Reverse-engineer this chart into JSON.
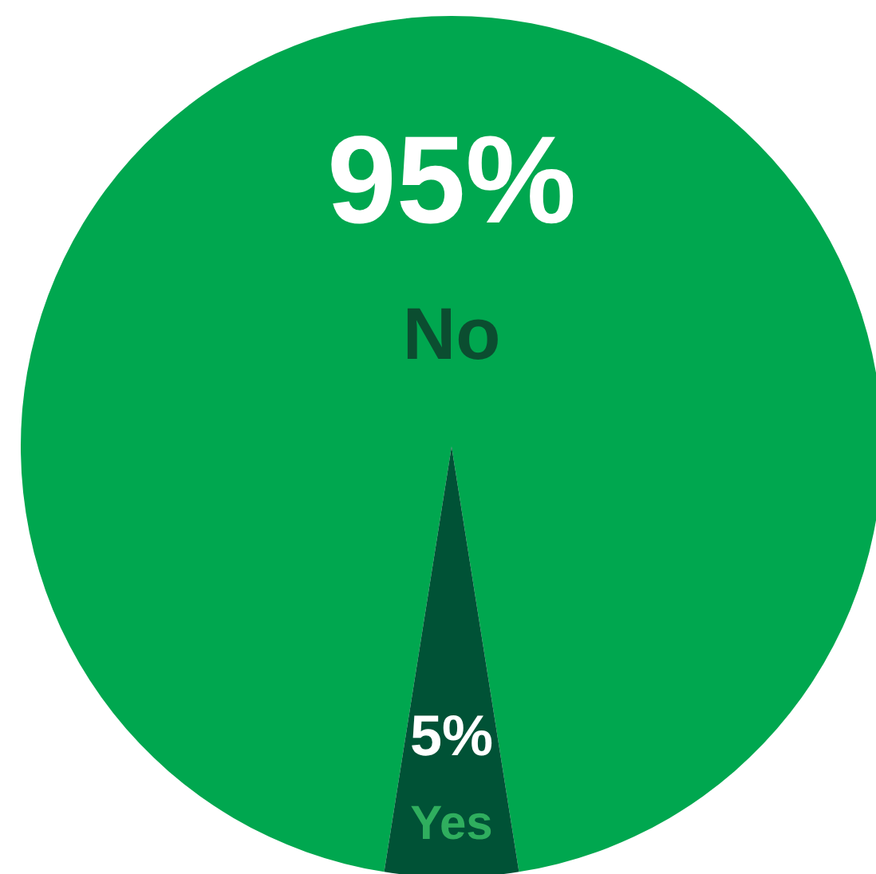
{
  "chart_data": {
    "type": "pie",
    "categories": [
      "No",
      "Yes"
    ],
    "values": [
      95,
      5
    ],
    "colors": [
      "#00a74f",
      "#005236"
    ],
    "value_labels": [
      "95%",
      "5%"
    ]
  }
}
